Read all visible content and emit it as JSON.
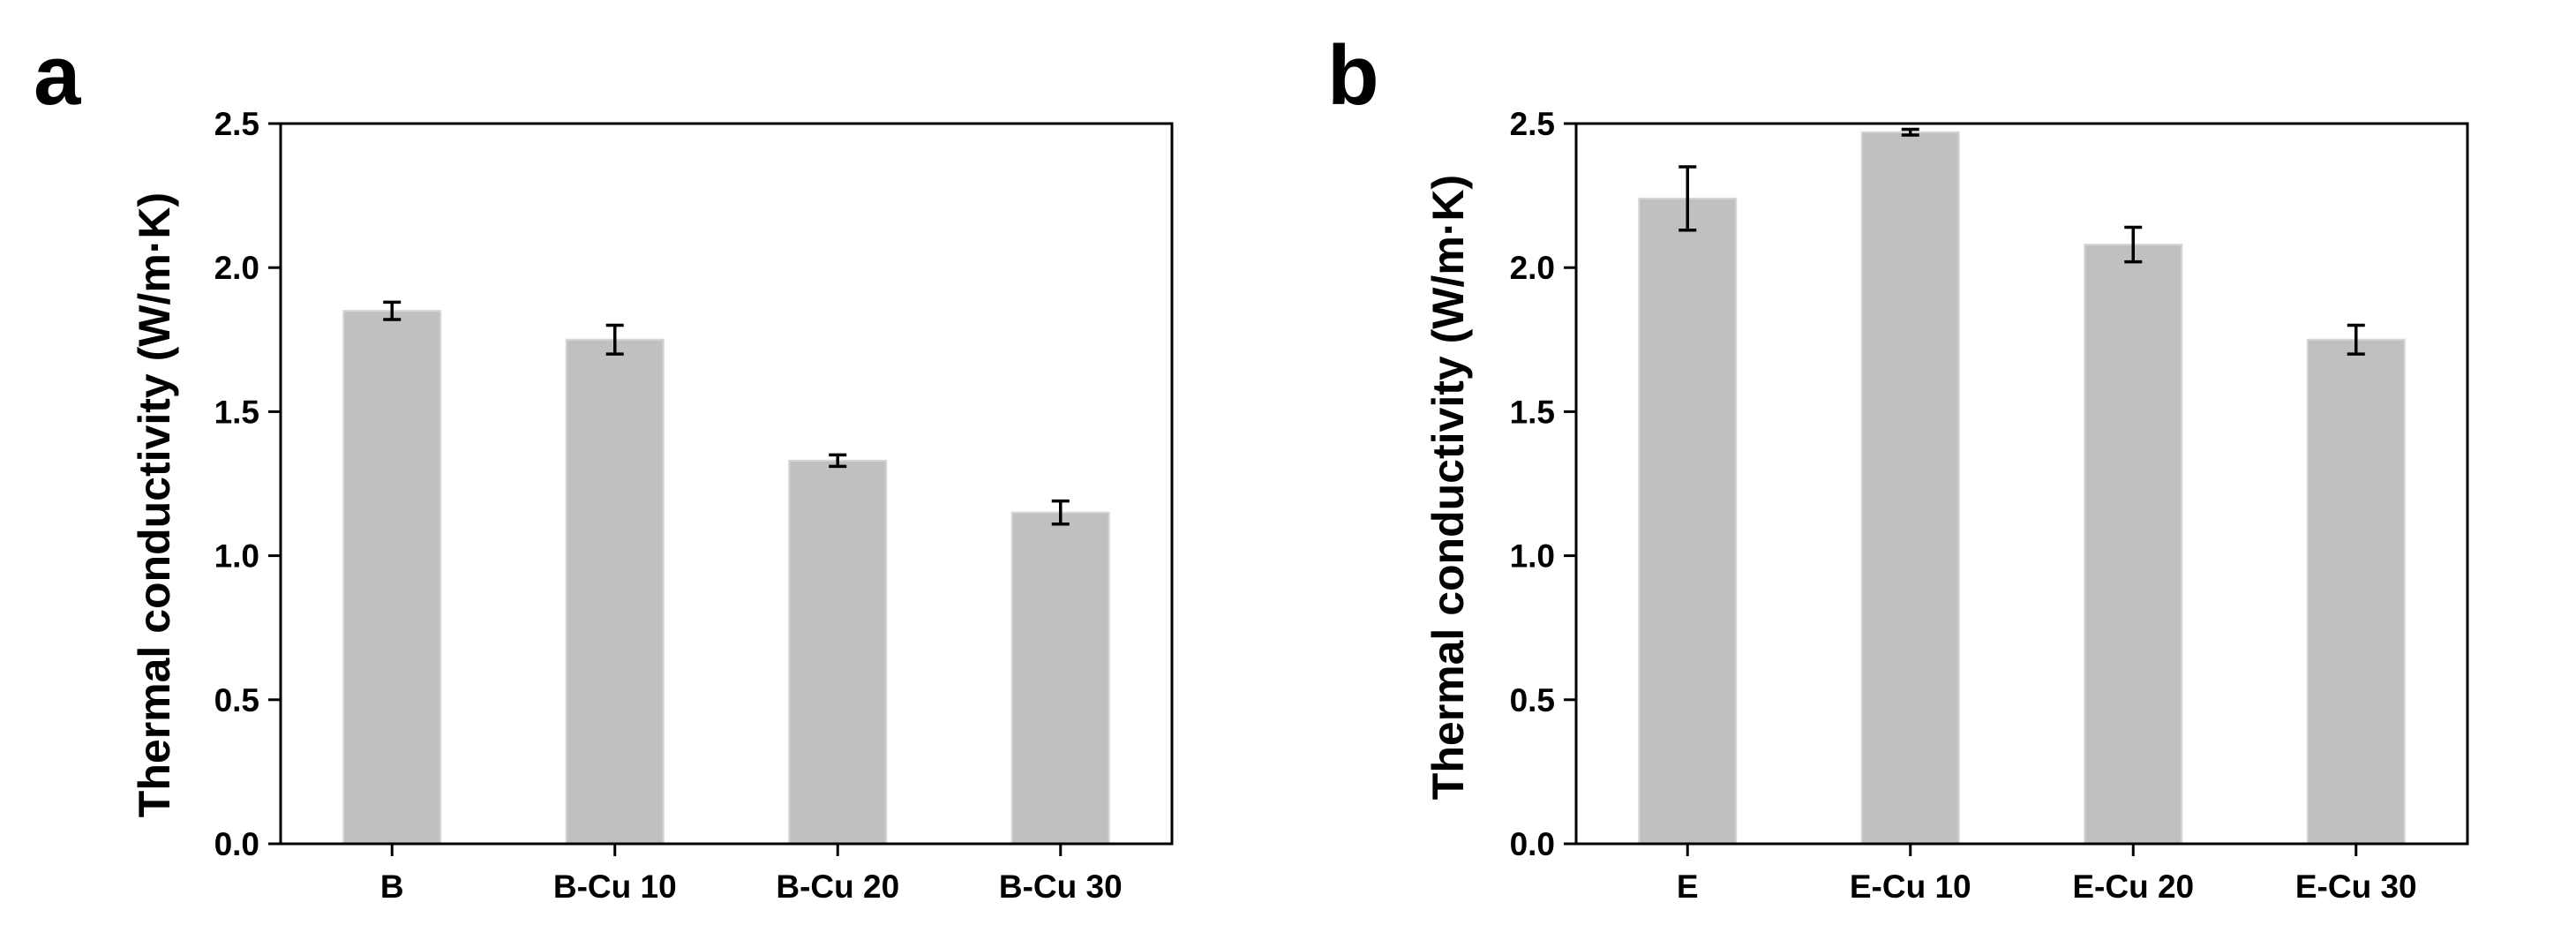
{
  "chart_data": [
    {
      "panel_label": "a",
      "type": "bar",
      "title": "",
      "xlabel": "",
      "ylabel": "Thermal conductivity (W/m·K)",
      "ylim": [
        0,
        2.5
      ],
      "yticks": [
        "0.0",
        "0.5",
        "1.0",
        "1.5",
        "2.0",
        "2.5"
      ],
      "categories": [
        "B",
        "B-Cu 10",
        "B-Cu 20",
        "B-Cu 30"
      ],
      "values": [
        1.85,
        1.75,
        1.33,
        1.15
      ],
      "errors": [
        0.03,
        0.05,
        0.02,
        0.04
      ],
      "bar_color": "#c0c0c0",
      "grid": false
    },
    {
      "panel_label": "b",
      "type": "bar",
      "title": "",
      "xlabel": "",
      "ylabel": "Thermal conductivity (W/m·K)",
      "ylim": [
        0,
        2.5
      ],
      "yticks": [
        "0.0",
        "0.5",
        "1.0",
        "1.5",
        "2.0",
        "2.5"
      ],
      "categories": [
        "E",
        "E-Cu 10",
        "E-Cu 20",
        "E-Cu 30"
      ],
      "values": [
        2.24,
        2.47,
        2.08,
        1.75
      ],
      "errors": [
        0.11,
        0.01,
        0.06,
        0.05
      ],
      "bar_color": "#c0c0c0",
      "grid": false
    }
  ]
}
